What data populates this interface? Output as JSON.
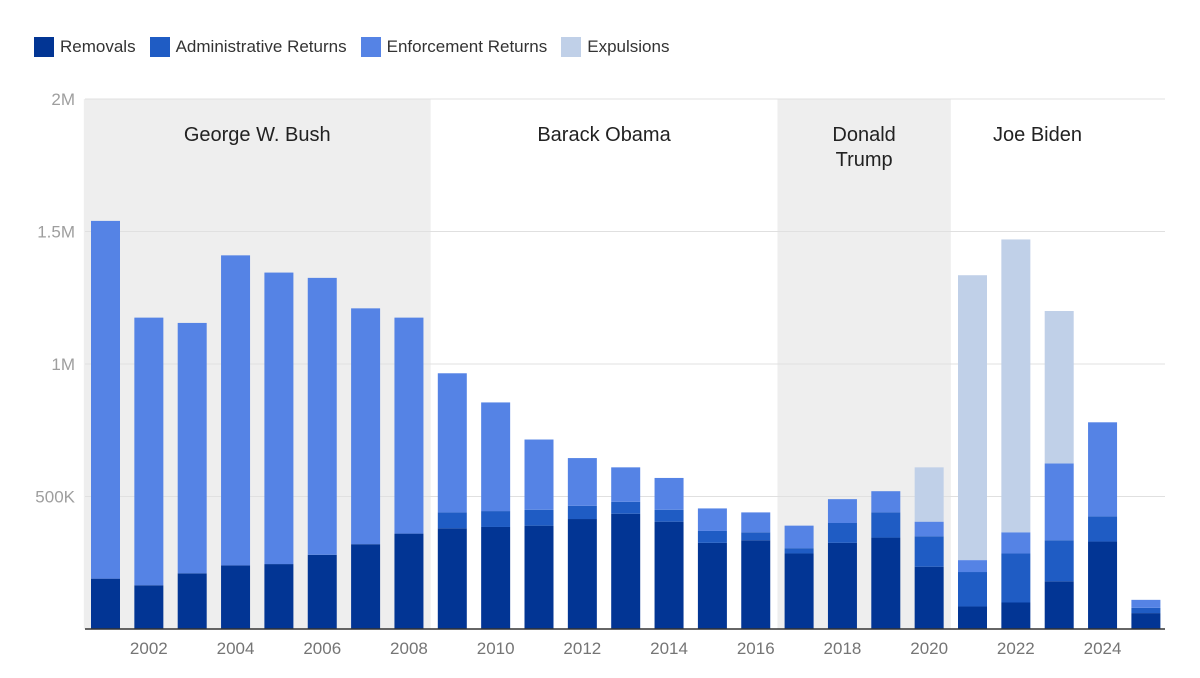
{
  "chart_data": {
    "type": "bar",
    "stacked": true,
    "title": "",
    "xlabel": "",
    "ylabel": "",
    "ylim": [
      0,
      2000000
    ],
    "yticks": [
      {
        "value": 500000,
        "label": "500K"
      },
      {
        "value": 1000000,
        "label": "1M"
      },
      {
        "value": 1500000,
        "label": "1.5M"
      },
      {
        "value": 2000000,
        "label": "2M"
      }
    ],
    "grid": true,
    "legend_position": "top-left",
    "categories": [
      2001,
      2002,
      2003,
      2004,
      2005,
      2006,
      2007,
      2008,
      2009,
      2010,
      2011,
      2012,
      2013,
      2014,
      2015,
      2016,
      2017,
      2018,
      2019,
      2020,
      2021,
      2022,
      2023,
      2024,
      2025
    ],
    "x_tick_labels": [
      "2002",
      "2004",
      "2006",
      "2008",
      "2010",
      "2012",
      "2014",
      "2016",
      "2018",
      "2020",
      "2022",
      "2024"
    ],
    "series": [
      {
        "name": "Removals",
        "color": "#023594",
        "values": [
          190000,
          165000,
          210000,
          240000,
          245000,
          280000,
          320000,
          360000,
          380000,
          385000,
          390000,
          415000,
          435000,
          405000,
          325000,
          335000,
          285000,
          325000,
          345000,
          235000,
          85000,
          100000,
          180000,
          330000,
          60000
        ]
      },
      {
        "name": "Administrative Returns",
        "color": "#1f5cc4",
        "values": [
          0,
          0,
          0,
          0,
          0,
          0,
          0,
          0,
          60000,
          60000,
          60000,
          50000,
          45000,
          45000,
          45000,
          30000,
          20000,
          75000,
          95000,
          115000,
          130000,
          185000,
          155000,
          95000,
          20000
        ]
      },
      {
        "name": "Enforcement Returns",
        "color": "#5583e5",
        "values": [
          1350000,
          1010000,
          945000,
          1170000,
          1100000,
          1045000,
          890000,
          815000,
          525000,
          410000,
          265000,
          180000,
          130000,
          120000,
          85000,
          75000,
          85000,
          90000,
          80000,
          55000,
          45000,
          80000,
          290000,
          355000,
          30000
        ]
      },
      {
        "name": "Expulsions",
        "color": "#c0d0e8",
        "values": [
          0,
          0,
          0,
          0,
          0,
          0,
          0,
          0,
          0,
          0,
          0,
          0,
          0,
          0,
          0,
          0,
          0,
          0,
          0,
          205000,
          1075000,
          1105000,
          575000,
          0,
          0
        ]
      }
    ],
    "eras": [
      {
        "lines": [
          "George W. Bush"
        ],
        "start": 2001,
        "end": 2009,
        "shaded": true
      },
      {
        "lines": [
          "Barack Obama"
        ],
        "start": 2009,
        "end": 2017,
        "shaded": false
      },
      {
        "lines": [
          "Donald",
          "Trump"
        ],
        "start": 2017,
        "end": 2021,
        "shaded": true
      },
      {
        "lines": [
          "Joe Biden"
        ],
        "start": 2021,
        "end": 2025,
        "shaded": false
      }
    ]
  }
}
